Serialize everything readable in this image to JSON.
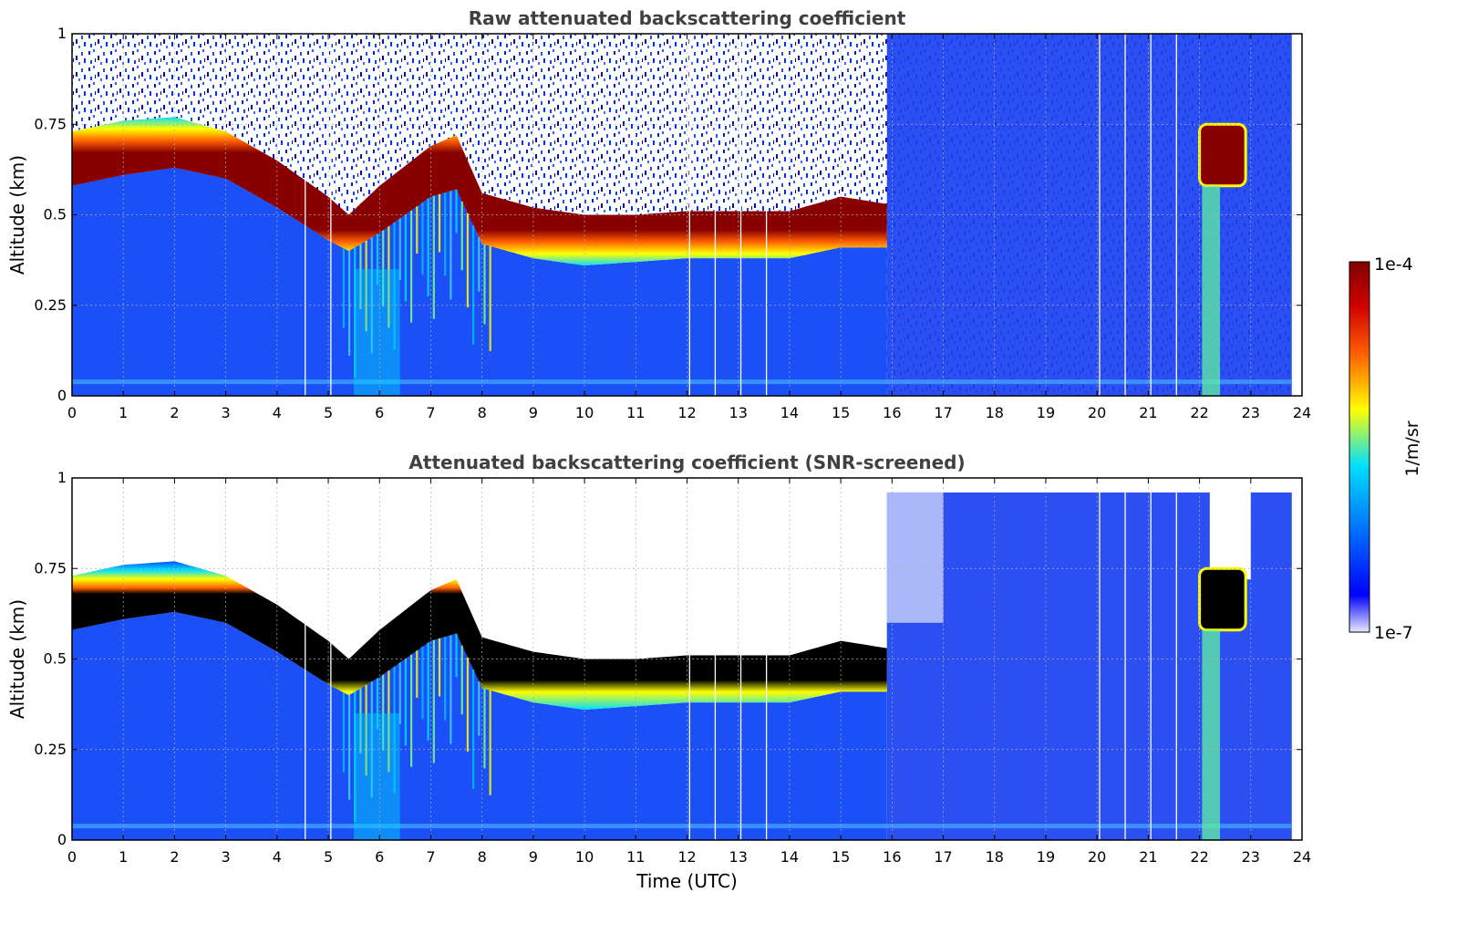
{
  "chart_data": [
    {
      "type": "heatmap",
      "title": "Raw attenuated backscattering coefficient",
      "ylabel": "Altitude (km)",
      "xlabel": "",
      "xlim": [
        0,
        24
      ],
      "ylim": [
        0,
        1
      ],
      "x_ticks": [
        "0",
        "1",
        "2",
        "3",
        "4",
        "5",
        "6",
        "7",
        "8",
        "9",
        "10",
        "11",
        "12",
        "13",
        "14",
        "15",
        "16",
        "17",
        "18",
        "19",
        "20",
        "21",
        "22",
        "23",
        "24"
      ],
      "y_ticks": [
        "0",
        "0.25",
        "0.5",
        "0.75",
        "1"
      ],
      "grid": true,
      "data_end_hour": 23.8,
      "cloud_layer": [
        {
          "t": 0,
          "base": 0.58,
          "top": 0.73
        },
        {
          "t": 1,
          "base": 0.61,
          "top": 0.76
        },
        {
          "t": 2,
          "base": 0.63,
          "top": 0.77
        },
        {
          "t": 3,
          "base": 0.6,
          "top": 0.73
        },
        {
          "t": 4,
          "base": 0.52,
          "top": 0.65
        },
        {
          "t": 5,
          "base": 0.43,
          "top": 0.55
        },
        {
          "t": 5.4,
          "base": 0.4,
          "top": 0.5
        },
        {
          "t": 6,
          "base": 0.45,
          "top": 0.58
        },
        {
          "t": 7,
          "base": 0.55,
          "top": 0.69
        },
        {
          "t": 7.5,
          "base": 0.57,
          "top": 0.72
        },
        {
          "t": 8,
          "base": 0.42,
          "top": 0.56
        },
        {
          "t": 9,
          "base": 0.38,
          "top": 0.52
        },
        {
          "t": 10,
          "base": 0.36,
          "top": 0.5
        },
        {
          "t": 11,
          "base": 0.37,
          "top": 0.5
        },
        {
          "t": 12,
          "base": 0.38,
          "top": 0.51
        },
        {
          "t": 13,
          "base": 0.38,
          "top": 0.51
        },
        {
          "t": 14,
          "base": 0.38,
          "top": 0.51
        },
        {
          "t": 15,
          "base": 0.41,
          "top": 0.55
        },
        {
          "t": 15.9,
          "base": 0.41,
          "top": 0.53
        }
      ],
      "late_cloud": {
        "t_start": 22.0,
        "t_end": 22.9,
        "base": 0.58,
        "top": 0.75
      }
    },
    {
      "type": "heatmap",
      "title": "Attenuated backscattering coefficient (SNR-screened)",
      "ylabel": "Altitude (km)",
      "xlabel": "Time (UTC)",
      "xlim": [
        0,
        24
      ],
      "ylim": [
        0,
        1
      ],
      "x_ticks": [
        "0",
        "1",
        "2",
        "3",
        "4",
        "5",
        "6",
        "7",
        "8",
        "9",
        "10",
        "11",
        "12",
        "13",
        "14",
        "15",
        "16",
        "17",
        "18",
        "19",
        "20",
        "21",
        "22",
        "23",
        "24"
      ],
      "y_ticks": [
        "0",
        "0.25",
        "0.5",
        "0.75",
        "1"
      ],
      "grid": true,
      "data_end_hour": 23.8,
      "saturated_color": "#000000"
    }
  ],
  "colorbar": {
    "max_label": "1e-4",
    "min_label": "1e-7",
    "unit": "1/m/sr",
    "colormap": [
      "#ffffff",
      "#0000ff",
      "#0080ff",
      "#00e0ff",
      "#ffff00",
      "#ff6000",
      "#d00000",
      "#800000"
    ]
  }
}
